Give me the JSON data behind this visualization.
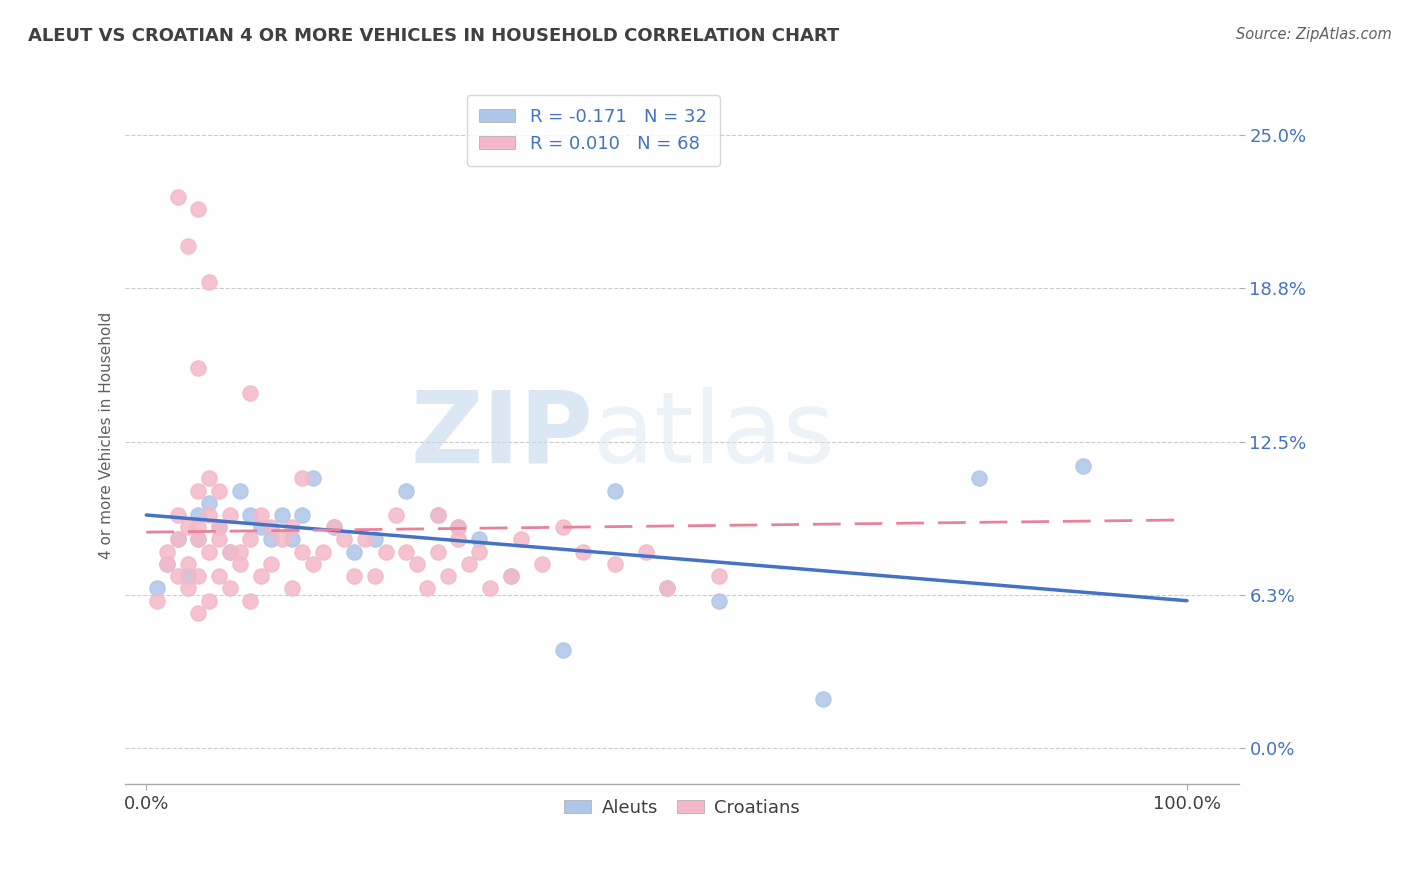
{
  "title": "ALEUT VS CROATIAN 4 OR MORE VEHICLES IN HOUSEHOLD CORRELATION CHART",
  "source": "Source: ZipAtlas.com",
  "ylabel": "4 or more Vehicles in Household",
  "aleut_color": "#aec6e8",
  "croatian_color": "#f4b8c8",
  "aleut_line_color": "#4472c4",
  "croatian_line_color": "#e8829a",
  "title_color": "#404040",
  "background_color": "#ffffff",
  "watermark_color": "#d5e5f5",
  "ytick_vals": [
    0.0,
    6.25,
    12.5,
    18.75,
    25.0
  ],
  "ytick_labels": [
    "0.0%",
    "6.3%",
    "12.5%",
    "18.8%",
    "25.0%"
  ],
  "xtick_vals": [
    0,
    100
  ],
  "xtick_labels": [
    "0.0%",
    "100.0%"
  ],
  "aleut_x": [
    1,
    2,
    3,
    4,
    5,
    5,
    6,
    7,
    8,
    9,
    10,
    11,
    12,
    13,
    14,
    15,
    16,
    18,
    20,
    22,
    25,
    28,
    30,
    32,
    35,
    40,
    45,
    50,
    55,
    65,
    80,
    90
  ],
  "aleut_y": [
    6.5,
    7.5,
    8.5,
    7.0,
    9.5,
    8.5,
    10.0,
    9.0,
    8.0,
    10.5,
    9.5,
    9.0,
    8.5,
    9.5,
    8.5,
    9.5,
    11.0,
    9.0,
    8.0,
    8.5,
    10.5,
    9.5,
    9.0,
    8.5,
    7.0,
    4.0,
    10.5,
    6.5,
    6.0,
    2.0,
    11.0,
    11.5
  ],
  "croatian_x": [
    1,
    2,
    2,
    3,
    3,
    3,
    4,
    4,
    4,
    5,
    5,
    5,
    5,
    5,
    6,
    6,
    6,
    6,
    7,
    7,
    7,
    7,
    8,
    8,
    8,
    9,
    9,
    10,
    10,
    10,
    11,
    11,
    12,
    12,
    13,
    14,
    14,
    15,
    15,
    16,
    17,
    18,
    19,
    20,
    21,
    22,
    23,
    24,
    25,
    26,
    27,
    28,
    28,
    29,
    30,
    30,
    31,
    32,
    33,
    35,
    36,
    38,
    40,
    42,
    45,
    48,
    50,
    55
  ],
  "croatian_y": [
    6.0,
    7.5,
    8.0,
    7.0,
    8.5,
    9.5,
    6.5,
    7.5,
    9.0,
    5.5,
    7.0,
    8.5,
    9.0,
    10.5,
    6.0,
    8.0,
    9.5,
    11.0,
    7.0,
    8.5,
    9.0,
    10.5,
    6.5,
    8.0,
    9.5,
    7.5,
    8.0,
    6.0,
    8.5,
    14.5,
    7.0,
    9.5,
    7.5,
    9.0,
    8.5,
    6.5,
    9.0,
    8.0,
    11.0,
    7.5,
    8.0,
    9.0,
    8.5,
    7.0,
    8.5,
    7.0,
    8.0,
    9.5,
    8.0,
    7.5,
    6.5,
    8.0,
    9.5,
    7.0,
    8.5,
    9.0,
    7.5,
    8.0,
    6.5,
    7.0,
    8.5,
    7.5,
    9.0,
    8.0,
    7.5,
    8.0,
    6.5,
    7.0
  ],
  "croatian_high_x": [
    3,
    5,
    4,
    6,
    5
  ],
  "croatian_high_y": [
    22.5,
    22.0,
    20.5,
    19.0,
    15.5
  ],
  "aleut_line_x": [
    0,
    100
  ],
  "aleut_line_y": [
    9.5,
    6.0
  ],
  "croatian_line_x": [
    0,
    100
  ],
  "croatian_line_y": [
    8.8,
    9.3
  ]
}
